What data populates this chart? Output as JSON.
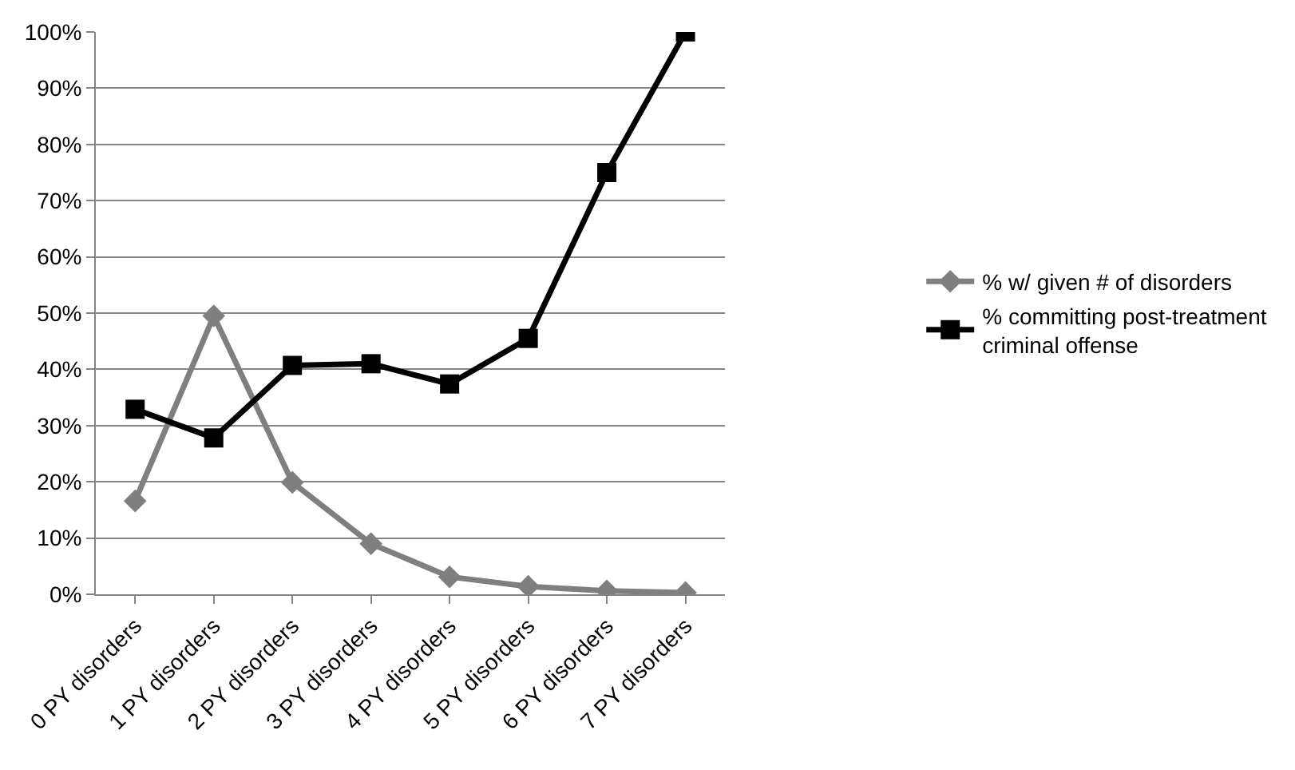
{
  "chart_data": {
    "type": "line",
    "categories": [
      "0 PY disorders",
      "1 PY disorders",
      "2 PY disorders",
      "3 PY disorders",
      "4 PY disorders",
      "5 PY disorders",
      "6 PY disorders",
      "7 PY disorders"
    ],
    "series": [
      {
        "name": "% w/ given # of disorders",
        "color": "#7f7f7f",
        "marker": "diamond",
        "values": [
          16.6,
          49.5,
          19.9,
          9,
          3.1,
          1.4,
          0.6,
          0.3
        ]
      },
      {
        "name": "% committing post-treatment criminal offense",
        "color": "#000000",
        "marker": "square",
        "values": [
          32.9,
          27.8,
          40.7,
          41,
          37.4,
          45.5,
          75,
          100
        ]
      }
    ],
    "ylim": [
      0,
      100
    ],
    "yticks": [
      {
        "value": 0,
        "label": "0%"
      },
      {
        "value": 10,
        "label": "10%"
      },
      {
        "value": 20,
        "label": "20%"
      },
      {
        "value": 30,
        "label": "30%"
      },
      {
        "value": 40,
        "label": "40%"
      },
      {
        "value": 50,
        "label": "50%"
      },
      {
        "value": 60,
        "label": "60%"
      },
      {
        "value": 70,
        "label": "70%"
      },
      {
        "value": 80,
        "label": "80%"
      },
      {
        "value": 90,
        "label": "90%"
      },
      {
        "value": 100,
        "label": "100%"
      }
    ],
    "grid": "y",
    "legend": "right",
    "line_style": "solid"
  }
}
